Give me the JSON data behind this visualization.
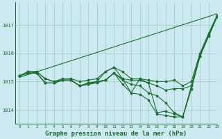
{
  "bg_color": "#cce8f0",
  "grid_color": "#99ccbb",
  "line_color": "#1a6e2e",
  "title": "Graphe pression niveau de la mer (hPa)",
  "title_fontsize": 6.5,
  "xlim": [
    -0.5,
    23
  ],
  "ylim": [
    1013.5,
    1017.8
  ],
  "yticks": [
    1014,
    1015,
    1016,
    1017
  ],
  "xticks": [
    0,
    1,
    2,
    3,
    4,
    5,
    6,
    7,
    8,
    9,
    10,
    11,
    12,
    13,
    14,
    15,
    16,
    17,
    18,
    19,
    20,
    21,
    22,
    23
  ],
  "trend_line": [
    [
      0,
      23
    ],
    [
      1015.15,
      1017.4
    ]
  ],
  "series": {
    "line_high": [
      1015.2,
      1015.35,
      1015.35,
      1015.1,
      1015.0,
      1015.1,
      1015.1,
      1015.0,
      1015.05,
      1015.1,
      1015.35,
      1015.5,
      1015.35,
      1015.1,
      1015.1,
      1015.05,
      1015.0,
      1015.0,
      1015.05,
      1014.85,
      1015.0,
      1016.0,
      1016.7,
      1017.35
    ],
    "line_mid1": [
      1015.2,
      1015.3,
      1015.3,
      1014.95,
      1014.95,
      1015.05,
      1015.05,
      1014.85,
      1014.95,
      1015.0,
      1015.05,
      1015.3,
      1015.1,
      1015.05,
      1015.05,
      1014.95,
      1014.85,
      1014.7,
      1014.75,
      1014.75,
      1014.85,
      1015.9,
      1016.65,
      1017.3
    ],
    "line_mid2": [
      1015.2,
      1015.3,
      1015.3,
      1014.95,
      1014.95,
      1015.05,
      1015.05,
      1014.85,
      1014.95,
      1015.0,
      1015.05,
      1015.3,
      1015.05,
      1014.9,
      1014.85,
      1014.6,
      1014.5,
      1014.25,
      1013.9,
      1013.75,
      1014.75,
      1015.9,
      1016.6,
      1017.3
    ],
    "line_low1": [
      1015.2,
      1015.3,
      1015.3,
      1014.95,
      1014.95,
      1015.05,
      1015.05,
      1014.85,
      1014.9,
      1014.95,
      1015.05,
      1015.3,
      1014.9,
      1014.6,
      1014.55,
      1014.35,
      1013.85,
      1013.8,
      1013.75,
      1013.75,
      1014.75,
      1015.9,
      1016.6,
      1017.3
    ],
    "line_low2": [
      1015.2,
      1015.35,
      1015.35,
      1015.1,
      1015.0,
      1015.05,
      1015.05,
      1014.85,
      1014.9,
      1015.0,
      1015.35,
      1015.5,
      1015.1,
      1014.6,
      1015.1,
      1014.95,
      1013.9,
      1013.95,
      1013.85,
      1013.75,
      1014.85,
      1015.95,
      1016.65,
      1017.35
    ]
  }
}
